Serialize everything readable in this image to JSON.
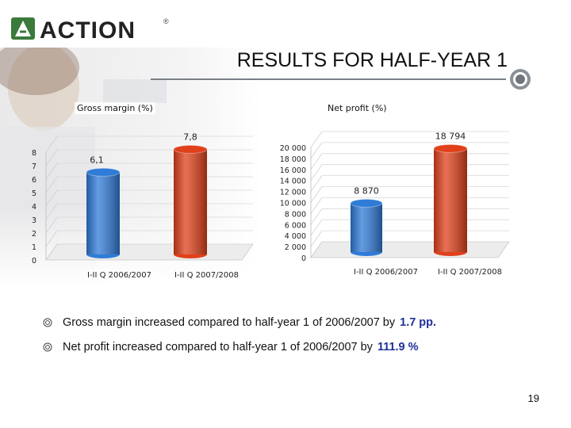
{
  "logo": {
    "text": "ACTION",
    "reg": "®"
  },
  "slide": {
    "title": "RESULTS FOR HALF-YEAR 1",
    "page_number": "19"
  },
  "chart_data": [
    {
      "type": "bar",
      "title": "Gross margin (%)",
      "categories": [
        "I-II Q 2006/2007",
        "I-II Q 2007/2008"
      ],
      "values": [
        6.1,
        7.8
      ],
      "value_labels": [
        "6,1",
        "7,8"
      ],
      "ylim": [
        0,
        8
      ],
      "yticks": [
        "0",
        "1",
        "2",
        "3",
        "4",
        "5",
        "6",
        "7",
        "8"
      ],
      "bar_colors": [
        "#2f7bd8",
        "#e0401a"
      ]
    },
    {
      "type": "bar",
      "title": "Net profit (%)",
      "categories": [
        "I-II Q 2006/2007",
        "I-II Q 2007/2008"
      ],
      "values": [
        8870,
        18794
      ],
      "value_labels": [
        "8 870",
        "18 794"
      ],
      "ylim": [
        0,
        20000
      ],
      "yticks": [
        "0",
        "2 000",
        "4 000",
        "6 000",
        "8 000",
        "10 000",
        "12 000",
        "14 000",
        "16 000",
        "18 000",
        "20 000"
      ],
      "bar_colors": [
        "#2f7bd8",
        "#e0401a"
      ]
    }
  ],
  "bullets": [
    {
      "text": "Gross margin increased compared to half-year 1 of 2006/2007 by",
      "highlight": "1.7 pp."
    },
    {
      "text": "Net profit increased compared to half-year 1 of 2006/2007 by",
      "highlight": "111.9 %"
    }
  ],
  "colors": {
    "accent_blue": "#1f2f9a",
    "logo_green": "#3a7a3a",
    "bar_blue": "#2f7bd8",
    "bar_red": "#e0401a"
  }
}
